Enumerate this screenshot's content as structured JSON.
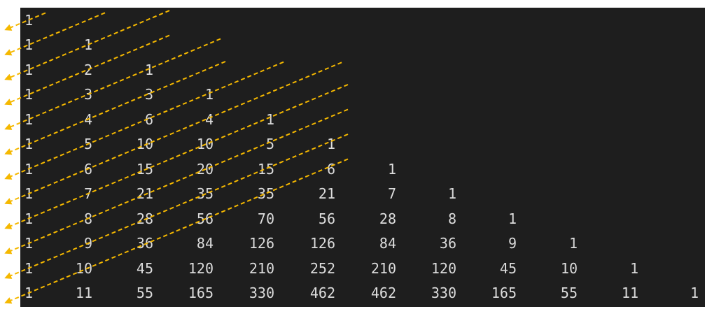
{
  "triangle": {
    "rows": [
      [
        "1"
      ],
      [
        "1",
        "1"
      ],
      [
        "1",
        "2",
        "1"
      ],
      [
        "1",
        "3",
        "3",
        "1"
      ],
      [
        "1",
        "4",
        "6",
        "4",
        "1"
      ],
      [
        "1",
        "5",
        "10",
        "10",
        "5",
        "1"
      ],
      [
        "1",
        "6",
        "15",
        "20",
        "15",
        "6",
        "1"
      ],
      [
        "1",
        "7",
        "21",
        "35",
        "35",
        "21",
        "7",
        "1"
      ],
      [
        "1",
        "8",
        "28",
        "56",
        "70",
        "56",
        "28",
        "8",
        "1"
      ],
      [
        "1",
        "9",
        "36",
        "84",
        "126",
        "126",
        "84",
        "36",
        "9",
        "1"
      ],
      [
        "1",
        "10",
        "45",
        "120",
        "210",
        "252",
        "210",
        "120",
        "45",
        "10",
        "1"
      ],
      [
        "1",
        "11",
        "55",
        "165",
        "330",
        "462",
        "462",
        "330",
        "165",
        "55",
        "11",
        "1"
      ]
    ]
  },
  "colors": {
    "terminal_background": "#1e1e1e",
    "text": "#dcdcdc",
    "annotation": "#f5b800",
    "page_background": "#ffffff"
  },
  "annotations": {
    "style": "dashed-diagonal-arrows",
    "count": 12
  }
}
